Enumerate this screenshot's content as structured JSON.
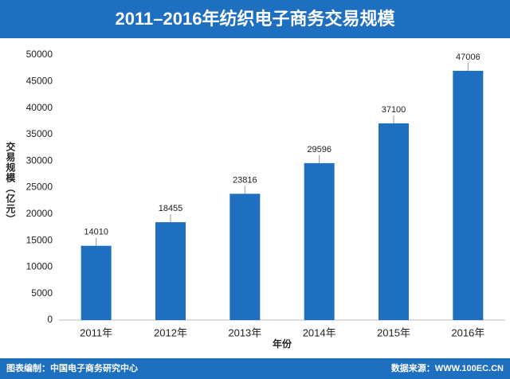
{
  "chart_data": {
    "type": "bar",
    "title": "2011–2016年纺织电子商务交易规模",
    "x_label": "年份",
    "y_label": "交易规模（亿元）",
    "categories": [
      "2011年",
      "2012年",
      "2013年",
      "2014年",
      "2015年",
      "2016年"
    ],
    "values": [
      14010,
      18455,
      23816,
      29596,
      37100,
      47006
    ],
    "color": "#1f6fc0",
    "ylim": [
      0,
      50000
    ],
    "yticks": [
      0,
      5000,
      10000,
      15000,
      20000,
      25000,
      30000,
      35000,
      40000,
      45000,
      50000
    ],
    "grid": false
  },
  "footer": {
    "left": "图表编制：中国电子商务研究中心",
    "right": "数据来源：WWW.100EC.CN"
  }
}
